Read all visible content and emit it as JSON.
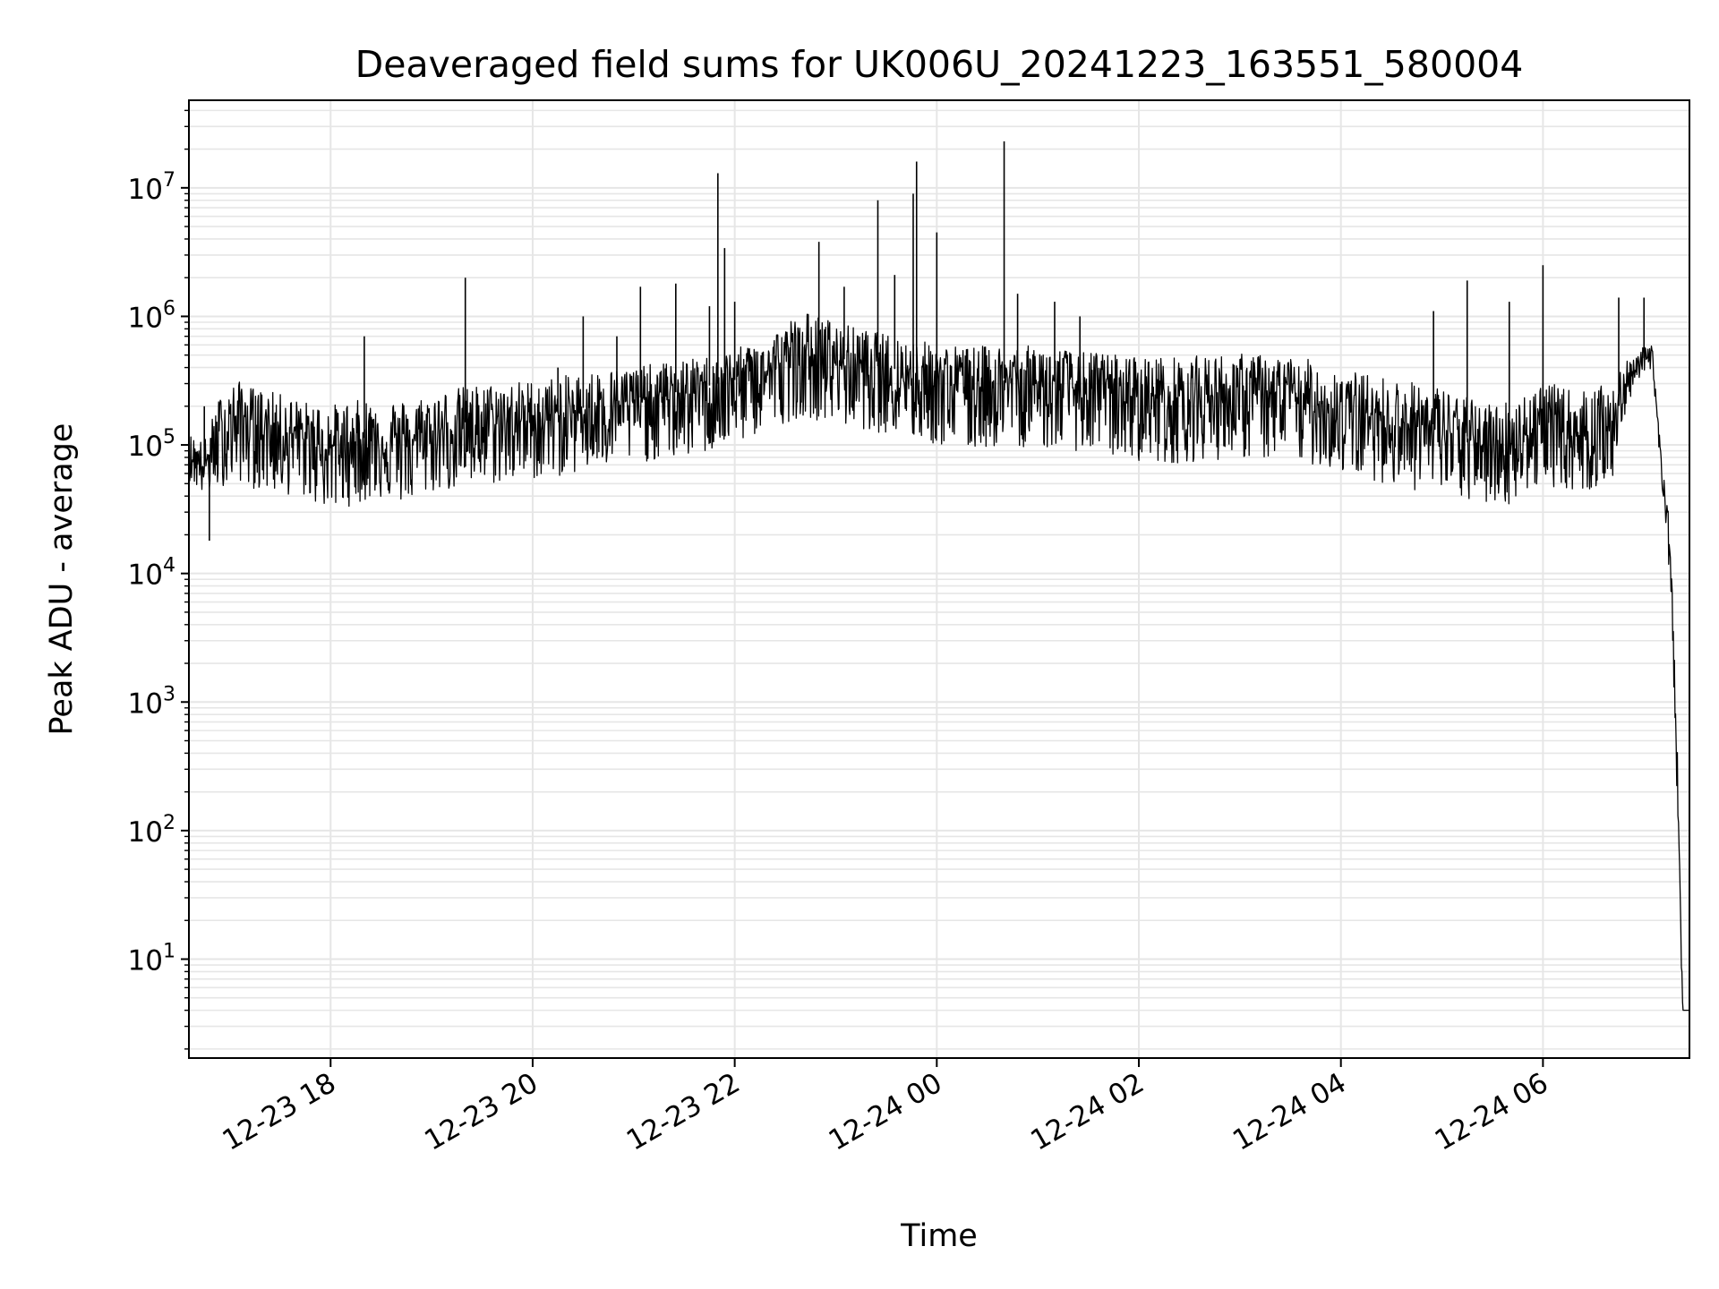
{
  "chart_data": {
    "type": "line",
    "title": "Deaveraged field sums for UK006U_20241223_163551_580004",
    "xlabel": "Time",
    "ylabel": "Peak ADU - average",
    "yscale": "log",
    "ylim": [
      1.7,
      48000000
    ],
    "xlim": [
      "2024-12-23 16:35:51",
      "2024-12-24 07:27:00"
    ],
    "grid": true,
    "line_color": "#000000",
    "grid_color": "#e6e6e6",
    "x_ticks": [
      {
        "value": "2024-12-23 18:00",
        "label": "12-23 18"
      },
      {
        "value": "2024-12-23 20:00",
        "label": "12-23 20"
      },
      {
        "value": "2024-12-23 22:00",
        "label": "12-23 22"
      },
      {
        "value": "2024-12-24 00:00",
        "label": "12-24 00"
      },
      {
        "value": "2024-12-24 02:00",
        "label": "12-24 02"
      },
      {
        "value": "2024-12-24 04:00",
        "label": "12-24 04"
      },
      {
        "value": "2024-12-24 06:00",
        "label": "12-24 06"
      }
    ],
    "y_ticks": [
      {
        "value": 10,
        "base": "10",
        "exp": "1"
      },
      {
        "value": 100,
        "base": "10",
        "exp": "2"
      },
      {
        "value": 1000,
        "base": "10",
        "exp": "3"
      },
      {
        "value": 10000,
        "base": "10",
        "exp": "4"
      },
      {
        "value": 100000,
        "base": "10",
        "exp": "5"
      },
      {
        "value": 1000000,
        "base": "10",
        "exp": "6"
      },
      {
        "value": 10000000,
        "base": "10",
        "exp": "7"
      }
    ],
    "series": [
      {
        "x": [
          "2024-12-23 16:36",
          "2024-12-23 16:45",
          "2024-12-23 16:55",
          "2024-12-23 17:05",
          "2024-12-23 17:15",
          "2024-12-23 17:30",
          "2024-12-23 17:45",
          "2024-12-23 18:00",
          "2024-12-23 18:15",
          "2024-12-23 18:30",
          "2024-12-23 18:45",
          "2024-12-23 19:00",
          "2024-12-23 19:20",
          "2024-12-23 19:40",
          "2024-12-23 20:00",
          "2024-12-23 20:20",
          "2024-12-23 20:40",
          "2024-12-23 21:00",
          "2024-12-23 21:20",
          "2024-12-23 21:40",
          "2024-12-23 22:00",
          "2024-12-23 22:20",
          "2024-12-23 22:40",
          "2024-12-23 23:00",
          "2024-12-23 23:20",
          "2024-12-23 23:40",
          "2024-12-24 00:00",
          "2024-12-24 00:20",
          "2024-12-24 00:40",
          "2024-12-24 01:00",
          "2024-12-24 01:20",
          "2024-12-24 01:40",
          "2024-12-24 02:00",
          "2024-12-24 02:20",
          "2024-12-24 02:40",
          "2024-12-24 03:00",
          "2024-12-24 03:20",
          "2024-12-24 03:40",
          "2024-12-24 04:00",
          "2024-12-24 04:20",
          "2024-12-24 04:40",
          "2024-12-24 05:00",
          "2024-12-24 05:20",
          "2024-12-24 05:40",
          "2024-12-24 06:00",
          "2024-12-24 06:20",
          "2024-12-24 06:40",
          "2024-12-24 06:55",
          "2024-12-24 07:05",
          "2024-12-24 07:10",
          "2024-12-24 07:14",
          "2024-12-24 07:17",
          "2024-12-24 07:19",
          "2024-12-24 07:21",
          "2024-12-24 07:23",
          "2024-12-24 07:27"
        ],
        "y": [
          90000,
          70000,
          130000,
          180000,
          160000,
          140000,
          120000,
          100000,
          110000,
          120000,
          110000,
          130000,
          150000,
          160000,
          170000,
          180000,
          210000,
          230000,
          250000,
          280000,
          320000,
          400000,
          550000,
          480000,
          420000,
          380000,
          330000,
          320000,
          330000,
          320000,
          300000,
          280000,
          260000,
          250000,
          260000,
          270000,
          260000,
          240000,
          200000,
          180000,
          160000,
          140000,
          110000,
          110000,
          160000,
          130000,
          150000,
          450000,
          500000,
          80000,
          30000,
          5000,
          900,
          60,
          4,
          4
        ],
        "lower": [
          60000,
          45000,
          60000,
          70000,
          60000,
          55000,
          50000,
          40000,
          45000,
          50000,
          45000,
          55000,
          60000,
          65000,
          70000,
          75000,
          85000,
          95000,
          100000,
          110000,
          130000,
          170000,
          220000,
          190000,
          170000,
          150000,
          130000,
          120000,
          130000,
          125000,
          120000,
          110000,
          100000,
          95000,
          100000,
          105000,
          100000,
          95000,
          80000,
          70000,
          60000,
          55000,
          45000,
          45000,
          65000,
          55000,
          60000,
          350000,
          400000,
          60000,
          20000,
          3000,
          500,
          30,
          4,
          4
        ],
        "upper": [
          140000,
          130000,
          350000,
          400000,
          350000,
          320000,
          280000,
          280000,
          300000,
          320000,
          300000,
          340000,
          380000,
          400000,
          420000,
          460000,
          500000,
          520000,
          560000,
          600000,
          700000,
          900000,
          1500000,
          1200000,
          1000000,
          900000,
          800000,
          750000,
          780000,
          760000,
          720000,
          680000,
          650000,
          640000,
          660000,
          680000,
          660000,
          620000,
          520000,
          460000,
          420000,
          380000,
          300000,
          300000,
          420000,
          350000,
          400000,
          600000,
          650000,
          100000,
          40000,
          8000,
          1500,
          100,
          4,
          4
        ]
      }
    ],
    "spikes": [
      {
        "x": "2024-12-23 16:45",
        "y": 200000
      },
      {
        "x": "2024-12-23 16:48",
        "y": 18000
      },
      {
        "x": "2024-12-23 18:20",
        "y": 700000
      },
      {
        "x": "2024-12-23 19:20",
        "y": 2000000
      },
      {
        "x": "2024-12-23 20:15",
        "y": 400000
      },
      {
        "x": "2024-12-23 20:30",
        "y": 1000000
      },
      {
        "x": "2024-12-23 20:50",
        "y": 700000
      },
      {
        "x": "2024-12-23 21:04",
        "y": 1700000
      },
      {
        "x": "2024-12-23 21:25",
        "y": 1800000
      },
      {
        "x": "2024-12-23 21:45",
        "y": 1200000
      },
      {
        "x": "2024-12-23 21:50",
        "y": 13000000
      },
      {
        "x": "2024-12-23 21:54",
        "y": 3400000
      },
      {
        "x": "2024-12-23 22:00",
        "y": 1300000
      },
      {
        "x": "2024-12-23 22:50",
        "y": 3800000
      },
      {
        "x": "2024-12-23 23:05",
        "y": 1700000
      },
      {
        "x": "2024-12-23 23:25",
        "y": 8000000
      },
      {
        "x": "2024-12-23 23:35",
        "y": 2100000
      },
      {
        "x": "2024-12-23 23:46",
        "y": 9000000
      },
      {
        "x": "2024-12-23 23:48",
        "y": 16000000
      },
      {
        "x": "2024-12-24 00:00",
        "y": 4500000
      },
      {
        "x": "2024-12-24 00:40",
        "y": 23000000
      },
      {
        "x": "2024-12-24 00:48",
        "y": 1500000
      },
      {
        "x": "2024-12-24 01:10",
        "y": 1300000
      },
      {
        "x": "2024-12-24 01:25",
        "y": 1000000
      },
      {
        "x": "2024-12-24 04:55",
        "y": 1100000
      },
      {
        "x": "2024-12-24 05:15",
        "y": 1900000
      },
      {
        "x": "2024-12-24 05:40",
        "y": 1300000
      },
      {
        "x": "2024-12-24 06:00",
        "y": 2500000
      },
      {
        "x": "2024-12-24 06:45",
        "y": 1400000
      },
      {
        "x": "2024-12-24 07:00",
        "y": 1400000
      }
    ]
  }
}
